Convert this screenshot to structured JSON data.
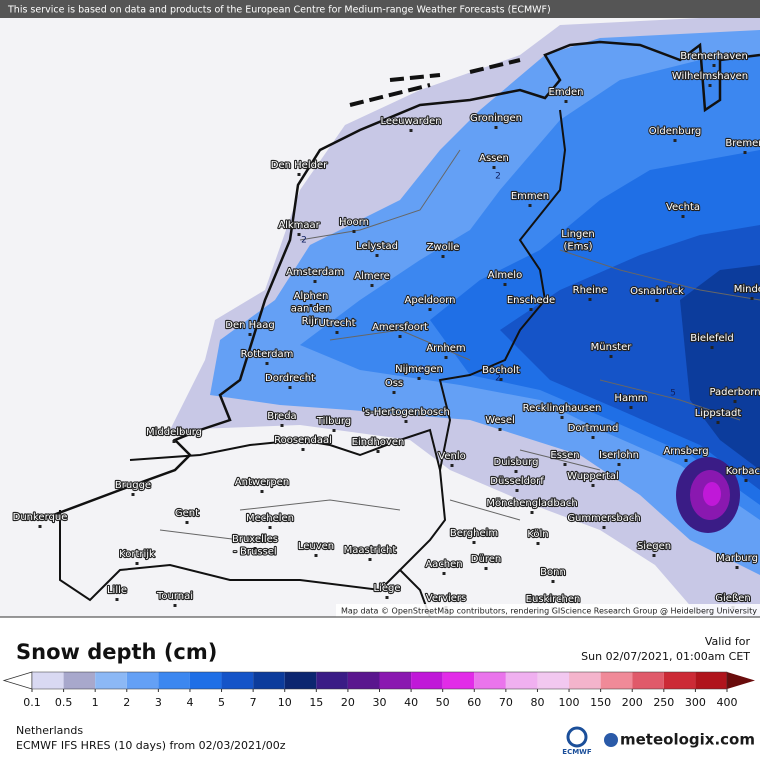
{
  "header": {
    "notice": "This service is based on data and products of the European Centre for Medium-range Weather Forecasts (ECMWF)"
  },
  "map": {
    "places": [
      "Bremerhaven",
      "Wilhelmshaven",
      "Emden",
      "Leeuwarden",
      "Groningen",
      "Oldenburg",
      "Bremen",
      "Den Helder",
      "Assen",
      "Emmen",
      "Hoorn",
      "Alkmaar",
      "Vechta",
      [
        "Lingen",
        "(Ems)"
      ],
      "Lelystad",
      "Zwolle",
      "Amsterdam",
      "Almere",
      "Almelo",
      "Rheine",
      "Osnabrück",
      "Minden",
      [
        "Alphen",
        "aan den",
        "Rijn"
      ],
      "Apeldoorn",
      "Enschede",
      "Den Haag",
      "Utrecht",
      "Amersfoort",
      "Bielefeld",
      "Arnhem",
      "Münster",
      "Rotterdam",
      "Nijmegen",
      "Bocholt",
      "Dordrecht",
      "Oss",
      "Paderborn",
      "Hamm",
      "Recklinghausen",
      "Lippstadt",
      "Breda",
      "Tilburg",
      "'s-Hertogenbosch",
      "Wesel",
      "Middelburg",
      "Dortmund",
      "Roosendaal",
      "Eindhoven",
      "Essen",
      "Iserlohn",
      "Arnsberg",
      "Korbach",
      "Venlo",
      "Duisburg",
      "Wuppertal",
      "Düsseldorf",
      "Antwerpen",
      "Brugge",
      "Mönchengladbach",
      "Dunkerque",
      "Gent",
      "Mechelen",
      "Gummersbach",
      "Bergheim",
      "Köln",
      [
        "Bruxelles",
        "- Brussel"
      ],
      "Leuven",
      "Maastricht",
      "Siegen",
      "Kortrijk",
      "Düren",
      "Marburg",
      "Aachen",
      "Bonn",
      "Liège",
      "Lille",
      "Tournai",
      "Verviers",
      "Euskirchen",
      "Gießen"
    ],
    "contour_labels": [
      2,
      2,
      2,
      2,
      5
    ],
    "attribution": "Map data © OpenStreetMap contributors, rendering GIScience Research Group @ Heidelberg University"
  },
  "legend": {
    "title": "Snow depth (cm)",
    "ticks": [
      0.1,
      0.5,
      1,
      2,
      3,
      4,
      5,
      7,
      10,
      15,
      20,
      30,
      40,
      50,
      60,
      70,
      80,
      100,
      150,
      200,
      250,
      300,
      400
    ],
    "colors": [
      "#d9d9f2",
      "#a8a8cc",
      "#8cb8f5",
      "#64a0f5",
      "#3c87f0",
      "#1f6fe6",
      "#1554c8",
      "#0c3c9c",
      "#0c2670",
      "#3a1c86",
      "#5a168e",
      "#8a18b0",
      "#c018d8",
      "#e22ce8",
      "#ea74ec",
      "#f0b0f0",
      "#f2c8f0",
      "#f4b4cc",
      "#f08a98",
      "#e05a6a",
      "#cc2a36",
      "#b0141c"
    ],
    "under_color": "#ffffff",
    "over_color": "#6a0c0c"
  },
  "footer": {
    "valid_label": "Valid for",
    "valid_time": "Sun 02/07/2021, 01:00am CET",
    "region": "Netherlands",
    "model": "ECMWF IFS HRES (10 days) from 02/03/2021/00z",
    "ecmwf_logo": "ECMWF",
    "brand": "meteologix.com"
  }
}
